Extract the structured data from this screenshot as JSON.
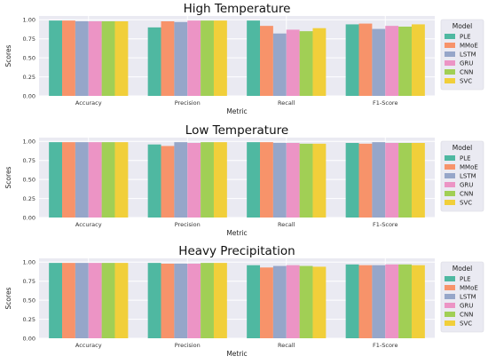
{
  "chart_data": [
    {
      "type": "bar",
      "title": "High Temperature",
      "xlabel": "Metric",
      "ylabel": "Scores",
      "ylim": [
        0,
        1.05
      ],
      "yticks": [
        "0.00",
        "0.25",
        "0.50",
        "0.75",
        "1.00"
      ],
      "grid": true,
      "legend": {
        "title": "Model",
        "position": "right"
      },
      "categories": [
        "Accuracy",
        "Precision",
        "Recall",
        "F1-Score"
      ],
      "series": [
        {
          "name": "PLE",
          "color": "#4fb8a1",
          "values": [
            0.99,
            0.9,
            0.99,
            0.94
          ]
        },
        {
          "name": "MMoE",
          "color": "#f7936a",
          "values": [
            0.99,
            0.98,
            0.92,
            0.95
          ]
        },
        {
          "name": "LSTM",
          "color": "#96a6c9",
          "values": [
            0.98,
            0.97,
            0.82,
            0.88
          ]
        },
        {
          "name": "GRU",
          "color": "#ec94c5",
          "values": [
            0.98,
            0.99,
            0.87,
            0.92
          ]
        },
        {
          "name": "CNN",
          "color": "#a1cf55",
          "values": [
            0.98,
            0.99,
            0.85,
            0.91
          ]
        },
        {
          "name": "SVC",
          "color": "#f1cf3a",
          "values": [
            0.98,
            0.99,
            0.89,
            0.94
          ]
        }
      ]
    },
    {
      "type": "bar",
      "title": "Low Temperature",
      "xlabel": "Metric",
      "ylabel": "Scores",
      "ylim": [
        0,
        1.05
      ],
      "yticks": [
        "0.00",
        "0.25",
        "0.50",
        "0.75",
        "1.00"
      ],
      "grid": true,
      "legend": {
        "title": "Model",
        "position": "right"
      },
      "categories": [
        "Accuracy",
        "Precision",
        "Recall",
        "F1-Score"
      ],
      "series": [
        {
          "name": "PLE",
          "color": "#4fb8a1",
          "values": [
            0.99,
            0.96,
            0.99,
            0.98
          ]
        },
        {
          "name": "MMoE",
          "color": "#f7936a",
          "values": [
            0.99,
            0.94,
            0.99,
            0.97
          ]
        },
        {
          "name": "LSTM",
          "color": "#96a6c9",
          "values": [
            0.99,
            0.99,
            0.98,
            0.99
          ]
        },
        {
          "name": "GRU",
          "color": "#ec94c5",
          "values": [
            0.99,
            0.98,
            0.98,
            0.98
          ]
        },
        {
          "name": "CNN",
          "color": "#a1cf55",
          "values": [
            0.99,
            0.99,
            0.97,
            0.98
          ]
        },
        {
          "name": "SVC",
          "color": "#f1cf3a",
          "values": [
            0.99,
            0.99,
            0.97,
            0.98
          ]
        }
      ]
    },
    {
      "type": "bar",
      "title": "Heavy Precipitation",
      "xlabel": "Metric",
      "ylabel": "Scores",
      "ylim": [
        0,
        1.05
      ],
      "yticks": [
        "0.00",
        "0.25",
        "0.50",
        "0.75",
        "1.00"
      ],
      "grid": true,
      "legend": {
        "title": "Model",
        "position": "right"
      },
      "categories": [
        "Accuracy",
        "Precision",
        "Recall",
        "F1-Score"
      ],
      "series": [
        {
          "name": "PLE",
          "color": "#4fb8a1",
          "values": [
            0.99,
            0.99,
            0.96,
            0.97
          ]
        },
        {
          "name": "MMoE",
          "color": "#f7936a",
          "values": [
            0.99,
            0.98,
            0.93,
            0.96
          ]
        },
        {
          "name": "LSTM",
          "color": "#96a6c9",
          "values": [
            0.99,
            0.98,
            0.95,
            0.96
          ]
        },
        {
          "name": "GRU",
          "color": "#ec94c5",
          "values": [
            0.99,
            0.98,
            0.96,
            0.97
          ]
        },
        {
          "name": "CNN",
          "color": "#a1cf55",
          "values": [
            0.99,
            0.99,
            0.95,
            0.97
          ]
        },
        {
          "name": "SVC",
          "color": "#f1cf3a",
          "values": [
            0.99,
            0.99,
            0.94,
            0.96
          ]
        }
      ]
    }
  ]
}
